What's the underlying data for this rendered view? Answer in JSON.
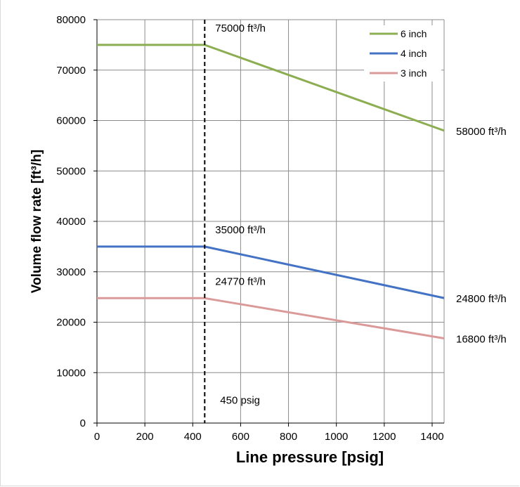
{
  "chart_data": {
    "type": "line",
    "title": "",
    "xlabel": "Line pressure [psig]",
    "ylabel": "Volume flow rate [ft³/h]",
    "xlim": [
      0,
      1450
    ],
    "ylim": [
      0,
      80000
    ],
    "xticks": [
      0,
      200,
      400,
      600,
      800,
      1000,
      1200,
      1400
    ],
    "yticks": [
      0,
      10000,
      20000,
      30000,
      40000,
      50000,
      60000,
      70000,
      80000
    ],
    "grid": true,
    "legend_position": "top-right",
    "series": [
      {
        "name": "6 inch",
        "color": "#8cad50",
        "x": [
          0,
          450,
          1450
        ],
        "y": [
          75000,
          75000,
          58000
        ]
      },
      {
        "name": "4 inch",
        "color": "#4472c4",
        "x": [
          0,
          450,
          1450
        ],
        "y": [
          35000,
          35000,
          24800
        ]
      },
      {
        "name": "3 inch",
        "color": "#db9a9a",
        "x": [
          0,
          450,
          1450
        ],
        "y": [
          24770,
          24770,
          16800
        ]
      }
    ],
    "reference_line": {
      "x": 450,
      "style": "dashed",
      "label": "450 psig"
    },
    "annotations": [
      {
        "text": "75000 ft³/h",
        "x": 450,
        "y": 75000
      },
      {
        "text": "35000 ft³/h",
        "x": 450,
        "y": 35000
      },
      {
        "text": "24770 ft³/h",
        "x": 450,
        "y": 24770
      },
      {
        "text": "58000 ft³/h",
        "x": 1450,
        "y": 58000
      },
      {
        "text": "24800  ft³/h",
        "x": 1450,
        "y": 24800
      },
      {
        "text": "16800 ft³/h",
        "x": 1450,
        "y": 16800
      }
    ]
  }
}
